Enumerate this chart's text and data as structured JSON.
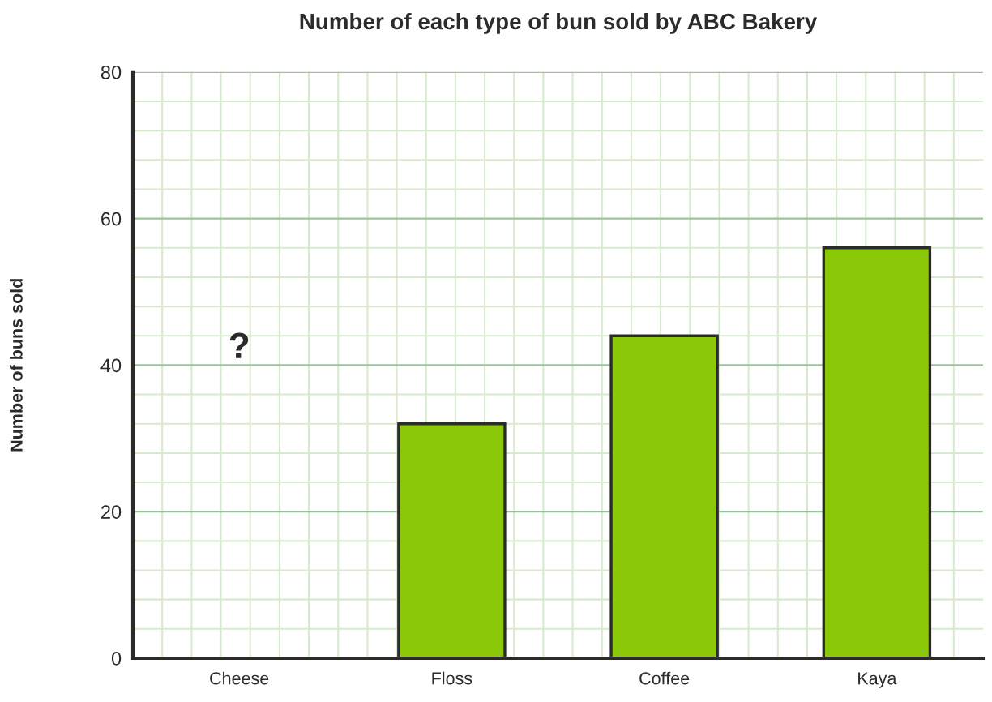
{
  "chart_data": {
    "type": "bar",
    "title": "Number of each type of bun sold by ABC Bakery",
    "ylabel": "Number of buns sold",
    "categories": [
      "Cheese",
      "Floss",
      "Coffee",
      "Kaya"
    ],
    "values": [
      null,
      32,
      44,
      56
    ],
    "color": "#8bc808",
    "ylim": [
      0,
      80
    ],
    "yticks": [
      0,
      20,
      40,
      60,
      80
    ],
    "grid": true,
    "annotations": [
      "?"
    ]
  }
}
